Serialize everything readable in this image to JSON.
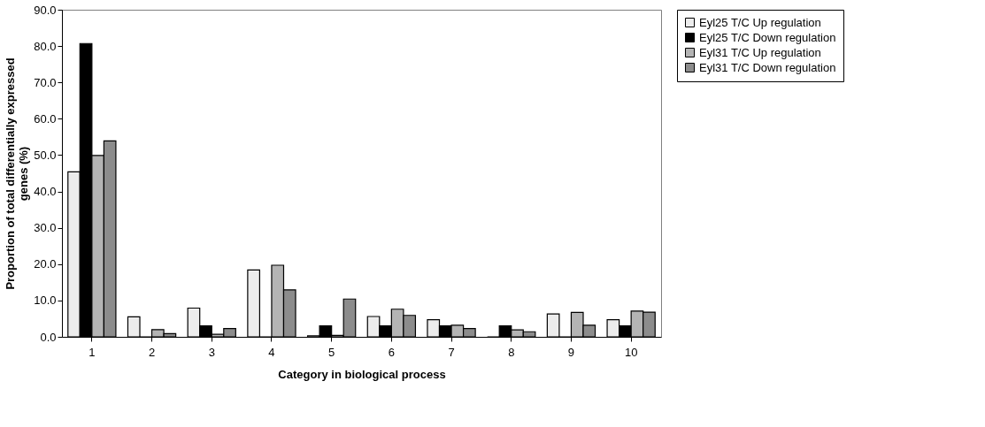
{
  "chart_data": {
    "type": "bar",
    "xlabel": "Category in biological process",
    "ylabel": "Proportion of total differentially expressed genes (%)",
    "categories": [
      "1",
      "2",
      "3",
      "4",
      "5",
      "6",
      "7",
      "8",
      "9",
      "10"
    ],
    "series": [
      {
        "name": "Eyl25 T/C Up regulation",
        "color": "#ececec",
        "values": [
          45.4,
          5.5,
          7.9,
          18.4,
          0.3,
          5.6,
          4.7,
          0,
          6.3,
          4.7
        ]
      },
      {
        "name": "Eyl25 T/C Down regulation",
        "color": "#000000",
        "values": [
          80.7,
          0,
          3.0,
          0,
          3.0,
          3.0,
          3.0,
          3.0,
          0,
          3.0
        ]
      },
      {
        "name": "Eyl31 T/C Up regulation",
        "color": "#b4b4b4",
        "values": [
          49.9,
          2.0,
          0.7,
          19.7,
          0.4,
          7.6,
          3.2,
          1.9,
          6.7,
          7.1
        ]
      },
      {
        "name": "Eyl31 T/C Down regulation",
        "color": "#8c8c8c",
        "values": [
          53.9,
          0.9,
          2.3,
          12.9,
          10.4,
          5.9,
          2.3,
          1.4,
          3.2,
          6.8
        ]
      }
    ],
    "ylim": [
      0,
      90
    ],
    "yticks": [
      {
        "value": 0,
        "label": "0.0"
      },
      {
        "value": 10,
        "label": "10.0"
      },
      {
        "value": 20,
        "label": "20.0"
      },
      {
        "value": 30,
        "label": "30.0"
      },
      {
        "value": 40,
        "label": "40.0"
      },
      {
        "value": 50,
        "label": "50.0"
      },
      {
        "value": 60,
        "label": "60.0"
      },
      {
        "value": 70,
        "label": "70.0"
      },
      {
        "value": 80,
        "label": "80.0"
      },
      {
        "value": 90,
        "label": "90.0"
      }
    ],
    "grid": false,
    "legend": "right"
  }
}
